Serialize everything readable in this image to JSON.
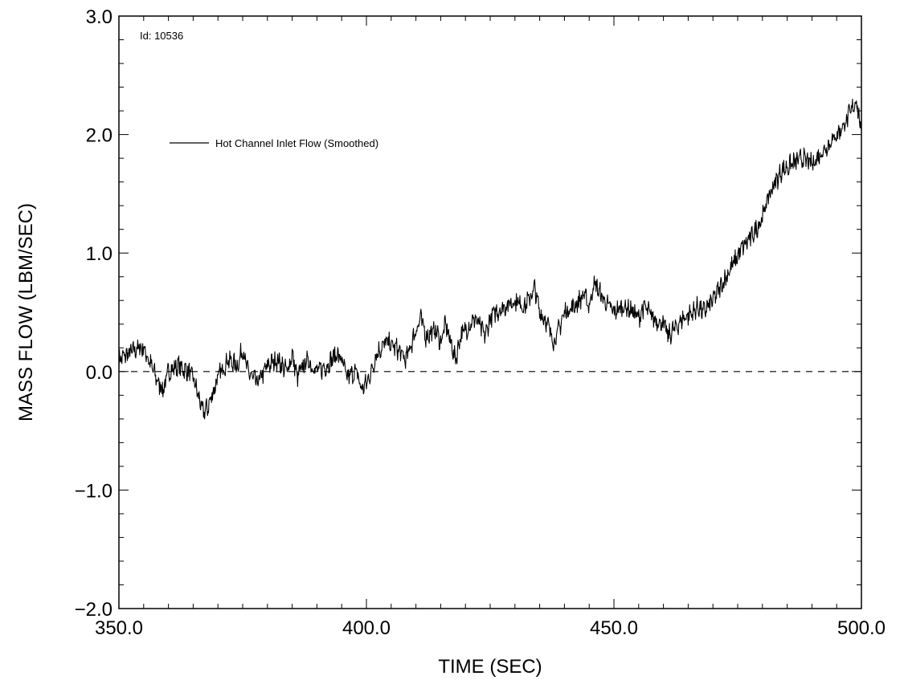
{
  "chart_data": {
    "type": "line",
    "xlabel": "TIME (SEC)",
    "ylabel": "MASS FLOW (LBM/SEC)",
    "xlim": [
      350.0,
      500.0
    ],
    "ylim": [
      -2.0,
      3.0
    ],
    "x_ticks": [
      "350.0",
      "400.0",
      "450.0",
      "500.0"
    ],
    "y_ticks": [
      "-2.0",
      "-1.0",
      "0.0",
      "1.0",
      "2.0",
      "3.0"
    ],
    "annotation": "Id: 10536",
    "legend": {
      "placement": "top-left"
    },
    "grid": false,
    "series": [
      {
        "name": "Hot Channel Inlet Flow (Smoothed)",
        "style": "solid",
        "color": "#000000",
        "x": [
          350,
          352,
          354,
          355,
          356,
          358,
          359,
          360,
          362,
          364,
          365,
          366,
          367,
          368,
          370,
          372,
          374,
          375,
          376,
          378,
          380,
          382,
          384,
          385,
          386,
          388,
          390,
          392,
          394,
          395,
          396,
          398,
          399,
          400,
          401,
          402,
          404,
          406,
          408,
          410,
          411,
          412,
          414,
          415,
          416,
          418,
          419,
          420,
          422,
          424,
          425,
          426,
          428,
          430,
          432,
          434,
          435,
          436,
          438,
          440,
          442,
          444,
          445,
          446,
          448,
          450,
          452,
          454,
          455,
          456,
          458,
          460,
          461,
          462,
          464,
          466,
          467,
          468,
          470,
          472,
          474,
          476,
          478,
          480,
          481,
          482,
          484,
          486,
          488,
          490,
          492,
          494,
          496,
          498,
          499,
          500
        ],
        "y": [
          0.1,
          0.15,
          0.2,
          0.2,
          0.1,
          -0.1,
          -0.15,
          0.0,
          0.05,
          0.0,
          -0.05,
          -0.2,
          -0.35,
          -0.3,
          -0.05,
          0.1,
          0.05,
          0.2,
          0.0,
          -0.1,
          0.05,
          0.1,
          0.0,
          0.15,
          -0.05,
          0.1,
          0.0,
          0.05,
          0.15,
          0.1,
          -0.05,
          0.0,
          -0.15,
          -0.1,
          0.0,
          0.15,
          0.25,
          0.2,
          0.1,
          0.35,
          0.45,
          0.3,
          0.35,
          0.25,
          0.4,
          0.1,
          0.3,
          0.35,
          0.45,
          0.3,
          0.45,
          0.5,
          0.55,
          0.6,
          0.55,
          0.7,
          0.5,
          0.45,
          0.25,
          0.5,
          0.55,
          0.65,
          0.55,
          0.75,
          0.6,
          0.5,
          0.55,
          0.5,
          0.45,
          0.55,
          0.45,
          0.4,
          0.3,
          0.35,
          0.45,
          0.5,
          0.55,
          0.5,
          0.6,
          0.75,
          0.9,
          1.05,
          1.15,
          1.3,
          1.45,
          1.55,
          1.7,
          1.75,
          1.8,
          1.75,
          1.85,
          1.95,
          2.05,
          2.2,
          2.3,
          2.0
        ],
        "x_range": [
          350,
          500
        ],
        "y_range": [
          -0.4,
          2.35
        ]
      },
      {
        "name": "",
        "style": "dashed",
        "color": "#000000",
        "x": [
          350,
          500
        ],
        "y": [
          0.0,
          0.0
        ]
      }
    ]
  }
}
